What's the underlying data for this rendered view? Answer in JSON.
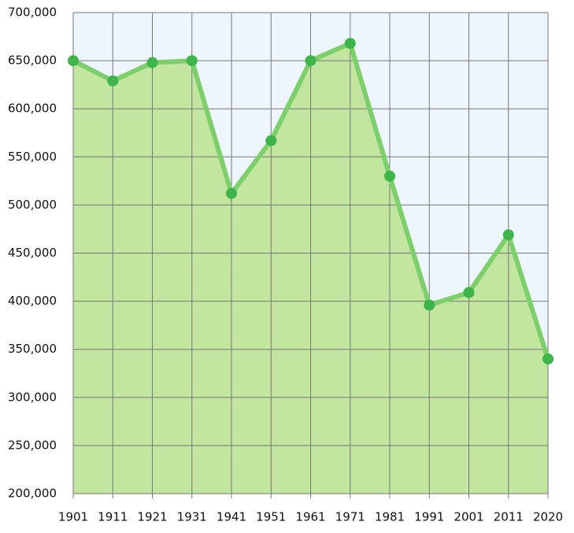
{
  "chart_data": {
    "type": "area",
    "categories": [
      "1901",
      "1911",
      "1921",
      "1931",
      "1941",
      "1951",
      "1961",
      "1971",
      "1981",
      "1991",
      "2001",
      "2011",
      "2020"
    ],
    "values": [
      650000,
      629000,
      648000,
      650000,
      512000,
      567000,
      650000,
      668000,
      530000,
      396000,
      409000,
      469000,
      340000
    ],
    "ylim": [
      200000,
      700000
    ],
    "yticks": [
      {
        "value": 200000,
        "label": "200,000"
      },
      {
        "value": 250000,
        "label": "250,000"
      },
      {
        "value": 300000,
        "label": "300,000"
      },
      {
        "value": 350000,
        "label": "350,000"
      },
      {
        "value": 400000,
        "label": "400,000"
      },
      {
        "value": 450000,
        "label": "450,000"
      },
      {
        "value": 500000,
        "label": "500,000"
      },
      {
        "value": 550000,
        "label": "550,000"
      },
      {
        "value": 600000,
        "label": "600,000"
      },
      {
        "value": 650000,
        "label": "650,000"
      },
      {
        "value": 700000,
        "label": "700,000"
      }
    ],
    "grid": true,
    "background": "#eef6fd",
    "fill_color": "#c2e5a0",
    "line_color": "#7ccf6a",
    "marker_color": "#3db54a"
  }
}
